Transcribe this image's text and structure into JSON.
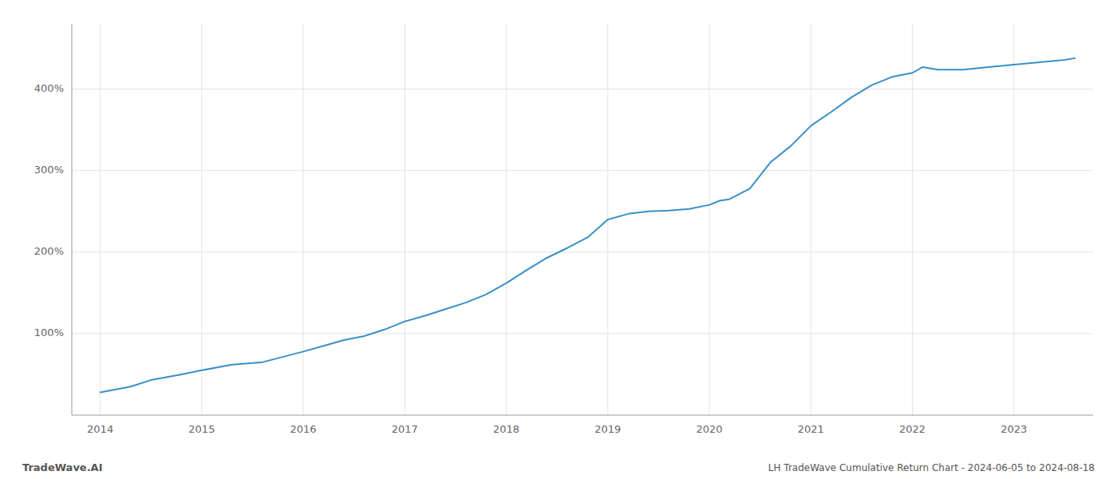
{
  "chart_data": {
    "type": "line",
    "title": "LH TradeWave Cumulative Return Chart - 2024-06-05 to 2024-08-18",
    "annotations": [
      "TradeWave.AI"
    ],
    "color": "#3a8fc7",
    "grid": true,
    "x": [
      2014.0,
      2014.3,
      2014.5,
      2014.8,
      2015.0,
      2015.3,
      2015.6,
      2016.0,
      2016.2,
      2016.4,
      2016.6,
      2016.8,
      2017.0,
      2017.2,
      2017.4,
      2017.6,
      2017.8,
      2018.0,
      2018.2,
      2018.4,
      2018.6,
      2018.8,
      2019.0,
      2019.2,
      2019.4,
      2019.6,
      2019.8,
      2020.0,
      2020.1,
      2020.2,
      2020.4,
      2020.6,
      2020.8,
      2021.0,
      2021.2,
      2021.4,
      2021.6,
      2021.8,
      2022.0,
      2022.1,
      2022.25,
      2022.5,
      2022.75,
      2023.0,
      2023.25,
      2023.5,
      2023.6
    ],
    "values": [
      28,
      35,
      43,
      50,
      55,
      62,
      65,
      78,
      85,
      92,
      97,
      105,
      115,
      122,
      130,
      138,
      148,
      162,
      178,
      193,
      205,
      218,
      240,
      247,
      250,
      251,
      253,
      258,
      263,
      265,
      278,
      310,
      330,
      355,
      372,
      390,
      405,
      415,
      420,
      427,
      424,
      424,
      427,
      430,
      433,
      436,
      438
    ],
    "xlim": [
      2013.72,
      2023.78
    ],
    "xticks": [
      2014,
      2015,
      2016,
      2017,
      2018,
      2019,
      2020,
      2021,
      2022,
      2023
    ],
    "ylim": [
      0,
      480
    ],
    "yticks": [
      {
        "value": 100,
        "label": "100%"
      },
      {
        "value": 200,
        "label": "200%"
      },
      {
        "value": 300,
        "label": "300%"
      },
      {
        "value": 400,
        "label": "400%"
      }
    ]
  }
}
